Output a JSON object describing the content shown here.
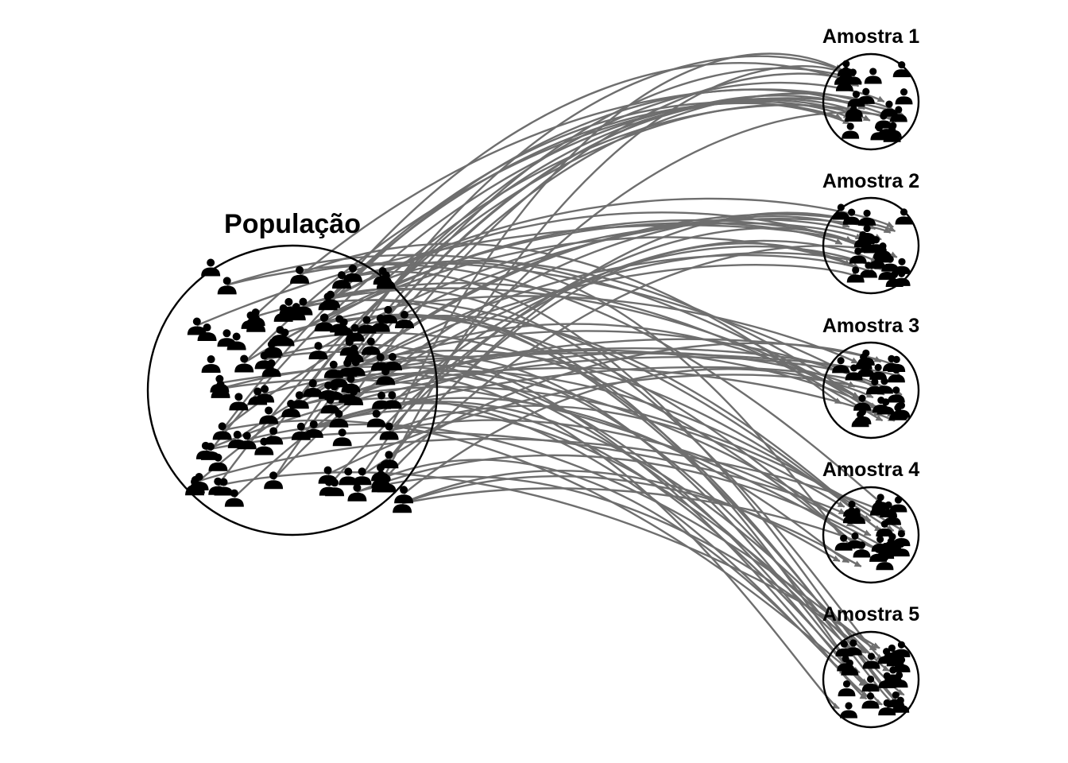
{
  "population": {
    "label": "População"
  },
  "samples": [
    {
      "label": "Amostra 1"
    },
    {
      "label": "Amostra 2"
    },
    {
      "label": "Amostra 3"
    },
    {
      "label": "Amostra 4"
    },
    {
      "label": "Amostra 5"
    }
  ],
  "colors": {
    "arrow": "#6e6e6e",
    "person": "#000000",
    "circle": "#000000"
  },
  "icons": {
    "person": "person-icon"
  }
}
